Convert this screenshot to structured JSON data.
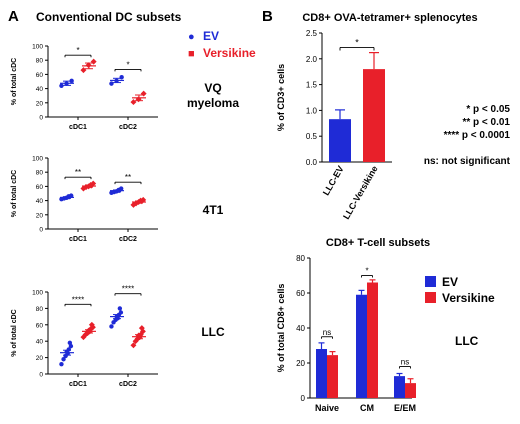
{
  "labels": {
    "panel_a": "A",
    "panel_a_title": "Conventional DC subsets",
    "panel_b": "B",
    "legend_a_ev": "EV",
    "legend_a_versikine": "Versikine",
    "legend_c_ev": "EV",
    "legend_c_versikine": "Versikine",
    "sig_1": "* p < 0.05",
    "sig_2": "** p < 0.01",
    "sig_3": "**** p < 0.0001",
    "sig_ns": "ns: not significant",
    "llc_label_c": "LLC"
  },
  "colors": {
    "ev": "#1f2bd6",
    "versikine": "#e8202a",
    "axis": "#000000"
  },
  "chart_data": [
    {
      "id": "a1",
      "type": "scatter",
      "model": "VQ myeloma",
      "model_lines": [
        "VQ",
        "myeloma"
      ],
      "ylabel": "% of total cDC",
      "ylim": [
        0,
        100
      ],
      "yticks": [
        "0",
        "20",
        "40",
        "60",
        "80",
        "100"
      ],
      "categories": [
        "cDC1",
        "cDC2"
      ],
      "groups": [
        {
          "cat": 0,
          "series": "EV",
          "points": [
            44,
            47,
            51
          ],
          "mean": 47.5,
          "sem": 3
        },
        {
          "cat": 0,
          "series": "Versikine",
          "points": [
            66,
            73,
            78
          ],
          "mean": 72,
          "sem": 4
        },
        {
          "cat": 1,
          "series": "EV",
          "points": [
            47,
            51,
            56
          ],
          "mean": 51.5,
          "sem": 3
        },
        {
          "cat": 1,
          "series": "Versikine",
          "points": [
            21,
            25,
            33
          ],
          "mean": 27,
          "sem": 4
        }
      ],
      "brackets": [
        {
          "cat": 0,
          "y": 87,
          "text": "*"
        },
        {
          "cat": 1,
          "y": 67,
          "text": "*"
        }
      ]
    },
    {
      "id": "a2",
      "type": "scatter",
      "model": "4T1",
      "model_lines": [
        "4T1"
      ],
      "ylabel": "% of total cDC",
      "ylim": [
        0,
        100
      ],
      "yticks": [
        "0",
        "20",
        "40",
        "60",
        "80",
        "100"
      ],
      "categories": [
        "cDC1",
        "cDC2"
      ],
      "groups": [
        {
          "cat": 0,
          "series": "EV",
          "points": [
            42,
            43,
            44,
            45,
            46,
            47
          ],
          "mean": 44.5,
          "sem": 1
        },
        {
          "cat": 0,
          "series": "Versikine",
          "points": [
            57,
            59,
            60,
            61,
            62,
            64
          ],
          "mean": 60.5,
          "sem": 1.5
        },
        {
          "cat": 1,
          "series": "EV",
          "points": [
            51,
            52,
            53,
            54,
            55,
            57
          ],
          "mean": 54,
          "sem": 1
        },
        {
          "cat": 1,
          "series": "Versikine",
          "points": [
            34,
            36,
            38,
            39,
            40,
            41
          ],
          "mean": 38,
          "sem": 1.5
        }
      ],
      "brackets": [
        {
          "cat": 0,
          "y": 73,
          "text": "**"
        },
        {
          "cat": 1,
          "y": 66,
          "text": "**"
        }
      ]
    },
    {
      "id": "a3",
      "type": "scatter",
      "model": "LLC",
      "model_lines": [
        "LLC"
      ],
      "ylabel": "% of total cDC",
      "ylim": [
        0,
        100
      ],
      "yticks": [
        "0",
        "20",
        "40",
        "60",
        "80",
        "100"
      ],
      "categories": [
        "cDC1",
        "cDC2"
      ],
      "groups": [
        {
          "cat": 0,
          "series": "EV",
          "points": [
            12,
            18,
            22,
            25,
            27,
            30,
            34,
            38
          ],
          "mean": 26,
          "sem": 3
        },
        {
          "cat": 0,
          "series": "Versikine",
          "points": [
            45,
            48,
            50,
            52,
            53,
            55,
            57,
            60
          ],
          "mean": 52,
          "sem": 2
        },
        {
          "cat": 1,
          "series": "EV",
          "points": [
            58,
            63,
            66,
            68,
            70,
            72,
            75,
            80
          ],
          "mean": 70,
          "sem": 2.5
        },
        {
          "cat": 1,
          "series": "Versikine",
          "points": [
            35,
            40,
            43,
            45,
            47,
            48,
            52,
            56
          ],
          "mean": 45.5,
          "sem": 2.5
        }
      ],
      "brackets": [
        {
          "cat": 0,
          "y": 85,
          "text": "****"
        },
        {
          "cat": 1,
          "y": 98,
          "text": "****"
        }
      ]
    },
    {
      "id": "b",
      "type": "bar",
      "title": "CD8+ OVA-tetramer+ splenocytes",
      "ylabel": "% of CD3+ cells",
      "ylim": [
        0,
        2.5
      ],
      "yticks": [
        "0.0",
        "0.5",
        "1.0",
        "1.5",
        "2.0",
        "2.5"
      ],
      "categories": [
        "LLC-EV",
        "LLC-Versikine"
      ],
      "values": [
        0.83,
        1.8
      ],
      "errors": [
        0.18,
        0.32
      ],
      "bracket": {
        "y": 2.22,
        "text": "*"
      }
    },
    {
      "id": "c",
      "type": "bar",
      "title": "CD8+ T-cell subsets",
      "ylabel": "% of total CD8+ cells",
      "ylim": [
        0,
        80
      ],
      "yticks": [
        "0",
        "20",
        "40",
        "60",
        "80"
      ],
      "categories": [
        "Naive",
        "CM",
        "E/EM"
      ],
      "series": [
        {
          "name": "EV",
          "values": [
            28,
            59,
            12.5
          ],
          "errors": [
            3.5,
            2.5,
            1.5
          ]
        },
        {
          "name": "Versikine",
          "values": [
            24.5,
            66,
            8.5
          ],
          "errors": [
            2,
            1.5,
            2.5
          ]
        }
      ],
      "brackets": [
        {
          "cat": 0,
          "y": 35,
          "text": "ns"
        },
        {
          "cat": 1,
          "y": 70,
          "text": "*"
        },
        {
          "cat": 2,
          "y": 18,
          "text": "ns"
        }
      ]
    }
  ]
}
